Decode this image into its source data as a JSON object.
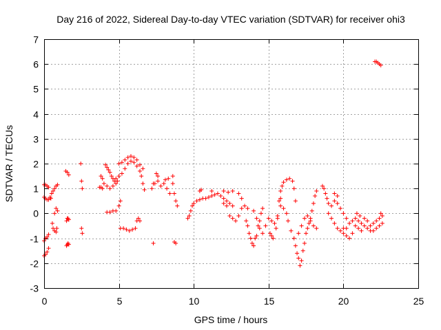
{
  "chart_data": {
    "type": "scatter",
    "title": "Day 216 of 2022, Sidereal Day-to-day VTEC variation (SDTVAR) for receiver ohi3",
    "xlabel": "GPS time / hours",
    "ylabel": "SDTVAR / TECUs",
    "xlim": [
      0,
      25
    ],
    "ylim": [
      -3,
      7
    ],
    "x_ticks": [
      "0",
      "5",
      "10",
      "15",
      "20",
      "25"
    ],
    "y_ticks": [
      "-3",
      "-2",
      "-1",
      "0",
      "1",
      "2",
      "3",
      "4",
      "5",
      "6",
      "7"
    ],
    "grid": true,
    "marker": "plus",
    "color": "#ff0000",
    "series": [
      {
        "name": "SDTVAR",
        "points": [
          [
            0.0,
            -1.7
          ],
          [
            0.1,
            -1.65
          ],
          [
            0.2,
            -1.55
          ],
          [
            0.3,
            -1.4
          ],
          [
            0.0,
            -1.1
          ],
          [
            0.1,
            -1.0
          ],
          [
            0.2,
            -0.95
          ],
          [
            0.3,
            -0.85
          ],
          [
            0.0,
            0.65
          ],
          [
            0.1,
            0.6
          ],
          [
            0.2,
            0.55
          ],
          [
            0.3,
            0.55
          ],
          [
            0.4,
            0.65
          ],
          [
            0.0,
            1.15
          ],
          [
            0.1,
            1.15
          ],
          [
            0.2,
            1.1
          ],
          [
            0.3,
            1.05
          ],
          [
            0.45,
            0.6
          ],
          [
            0.5,
            0.8
          ],
          [
            0.6,
            0.9
          ],
          [
            0.7,
            1.0
          ],
          [
            0.8,
            1.1
          ],
          [
            0.9,
            1.15
          ],
          [
            0.55,
            -0.4
          ],
          [
            0.6,
            -0.6
          ],
          [
            0.7,
            -0.7
          ],
          [
            0.8,
            -0.75
          ],
          [
            0.85,
            -0.6
          ],
          [
            0.7,
            0.0
          ],
          [
            0.8,
            0.2
          ],
          [
            0.9,
            0.1
          ],
          [
            1.5,
            -1.3
          ],
          [
            1.55,
            -1.25
          ],
          [
            1.6,
            -1.2
          ],
          [
            1.65,
            -1.25
          ],
          [
            1.5,
            -0.3
          ],
          [
            1.55,
            -0.2
          ],
          [
            1.6,
            -0.2
          ],
          [
            1.65,
            -0.25
          ],
          [
            1.45,
            1.7
          ],
          [
            1.55,
            1.65
          ],
          [
            1.65,
            1.55
          ],
          [
            2.45,
            2.0
          ],
          [
            2.5,
            1.3
          ],
          [
            2.55,
            1.0
          ],
          [
            2.5,
            -0.6
          ],
          [
            2.55,
            -0.8
          ],
          [
            3.7,
            1.05
          ],
          [
            3.8,
            1.05
          ],
          [
            3.9,
            1.0
          ],
          [
            3.8,
            1.5
          ],
          [
            3.9,
            1.4
          ],
          [
            4.0,
            1.2
          ],
          [
            4.1,
            1.95
          ],
          [
            4.2,
            1.85
          ],
          [
            4.3,
            1.75
          ],
          [
            4.4,
            1.65
          ],
          [
            4.5,
            1.5
          ],
          [
            4.6,
            1.4
          ],
          [
            4.7,
            1.3
          ],
          [
            4.8,
            1.2
          ],
          [
            4.9,
            1.3
          ],
          [
            4.2,
            1.1
          ],
          [
            4.4,
            1.0
          ],
          [
            4.6,
            1.1
          ],
          [
            4.8,
            1.4
          ],
          [
            5.0,
            1.5
          ],
          [
            5.2,
            1.6
          ],
          [
            5.4,
            1.8
          ],
          [
            5.6,
            2.0
          ],
          [
            5.8,
            2.1
          ],
          [
            6.0,
            2.05
          ],
          [
            6.2,
            1.9
          ],
          [
            6.4,
            1.7
          ],
          [
            6.5,
            1.5
          ],
          [
            6.6,
            1.2
          ],
          [
            6.7,
            0.95
          ],
          [
            5.0,
            2.0
          ],
          [
            5.2,
            2.05
          ],
          [
            5.4,
            2.15
          ],
          [
            5.6,
            2.25
          ],
          [
            5.8,
            2.3
          ],
          [
            6.0,
            2.25
          ],
          [
            6.2,
            2.15
          ],
          [
            6.4,
            1.95
          ],
          [
            6.6,
            1.8
          ],
          [
            4.2,
            0.05
          ],
          [
            4.4,
            0.05
          ],
          [
            4.6,
            0.1
          ],
          [
            4.8,
            0.1
          ],
          [
            5.0,
            0.3
          ],
          [
            5.1,
            0.5
          ],
          [
            5.1,
            -0.6
          ],
          [
            5.3,
            -0.6
          ],
          [
            5.5,
            -0.65
          ],
          [
            5.7,
            -0.7
          ],
          [
            5.9,
            -0.65
          ],
          [
            6.1,
            -0.6
          ],
          [
            6.2,
            -0.3
          ],
          [
            6.3,
            -0.2
          ],
          [
            6.4,
            -0.3
          ],
          [
            7.2,
            1.0
          ],
          [
            7.3,
            1.2
          ],
          [
            7.5,
            1.6
          ],
          [
            7.6,
            1.3
          ],
          [
            7.8,
            1.1
          ],
          [
            8.0,
            1.2
          ],
          [
            8.2,
            1.0
          ],
          [
            8.4,
            0.8
          ],
          [
            8.6,
            1.2
          ],
          [
            8.7,
            0.8
          ],
          [
            8.8,
            0.5
          ],
          [
            8.9,
            0.3
          ],
          [
            7.4,
            1.2
          ],
          [
            7.6,
            1.5
          ],
          [
            8.1,
            1.35
          ],
          [
            8.3,
            1.4
          ],
          [
            8.6,
            1.5
          ],
          [
            7.3,
            -1.2
          ],
          [
            8.7,
            -1.15
          ],
          [
            8.8,
            -1.2
          ],
          [
            9.6,
            -0.2
          ],
          [
            9.7,
            -0.1
          ],
          [
            9.8,
            0.1
          ],
          [
            9.9,
            0.3
          ],
          [
            10.0,
            0.4
          ],
          [
            10.2,
            0.5
          ],
          [
            10.4,
            0.55
          ],
          [
            10.6,
            0.6
          ],
          [
            10.8,
            0.6
          ],
          [
            11.0,
            0.65
          ],
          [
            11.2,
            0.7
          ],
          [
            11.4,
            0.75
          ],
          [
            11.6,
            0.8
          ],
          [
            11.8,
            0.7
          ],
          [
            12.0,
            0.6
          ],
          [
            12.2,
            0.5
          ],
          [
            12.4,
            0.4
          ],
          [
            12.6,
            0.3
          ],
          [
            10.4,
            0.9
          ],
          [
            10.5,
            0.95
          ],
          [
            11.2,
            0.9
          ],
          [
            12.0,
            0.9
          ],
          [
            12.3,
            0.85
          ],
          [
            12.6,
            0.9
          ],
          [
            13.0,
            0.8
          ],
          [
            13.2,
            0.6
          ],
          [
            12.0,
            0.4
          ],
          [
            12.2,
            0.3
          ],
          [
            12.4,
            -0.1
          ],
          [
            12.6,
            -0.2
          ],
          [
            12.8,
            -0.3
          ],
          [
            13.0,
            -0.1
          ],
          [
            13.2,
            0.2
          ],
          [
            13.4,
            0.3
          ],
          [
            13.6,
            0.2
          ],
          [
            13.5,
            -0.3
          ],
          [
            13.6,
            -0.5
          ],
          [
            13.7,
            -0.8
          ],
          [
            13.8,
            -1.0
          ],
          [
            13.9,
            -1.2
          ],
          [
            14.0,
            -1.3
          ],
          [
            14.1,
            -1.0
          ],
          [
            14.2,
            -0.9
          ],
          [
            14.3,
            -0.5
          ],
          [
            14.4,
            -0.3
          ],
          [
            14.5,
            0.0
          ],
          [
            14.6,
            0.2
          ],
          [
            14.0,
            0.1
          ],
          [
            14.2,
            -0.2
          ],
          [
            14.4,
            -0.6
          ],
          [
            14.6,
            -0.8
          ],
          [
            14.8,
            -0.5
          ],
          [
            15.0,
            -0.2
          ],
          [
            15.2,
            -0.3
          ],
          [
            15.4,
            -0.4
          ],
          [
            15.6,
            -0.2
          ],
          [
            15.8,
            0.3
          ],
          [
            15.1,
            -0.8
          ],
          [
            15.2,
            -0.9
          ],
          [
            15.3,
            -1.0
          ],
          [
            15.5,
            -0.6
          ],
          [
            15.6,
            -0.1
          ],
          [
            15.7,
            0.5
          ],
          [
            15.8,
            0.9
          ],
          [
            15.9,
            1.1
          ],
          [
            16.0,
            1.25
          ],
          [
            16.2,
            1.35
          ],
          [
            16.4,
            1.4
          ],
          [
            16.6,
            1.3
          ],
          [
            16.7,
            1.0
          ],
          [
            16.8,
            0.5
          ],
          [
            15.8,
            0.6
          ],
          [
            16.0,
            0.2
          ],
          [
            16.2,
            0.0
          ],
          [
            16.3,
            -0.3
          ],
          [
            16.5,
            -0.7
          ],
          [
            16.7,
            -1.0
          ],
          [
            16.8,
            -1.3
          ],
          [
            16.9,
            -1.6
          ],
          [
            17.0,
            -1.8
          ],
          [
            17.1,
            -2.1
          ],
          [
            17.2,
            -1.9
          ],
          [
            17.3,
            -1.5
          ],
          [
            17.4,
            -1.2
          ],
          [
            17.5,
            -0.8
          ],
          [
            17.6,
            -0.6
          ],
          [
            17.7,
            -0.4
          ],
          [
            17.8,
            -0.2
          ],
          [
            17.9,
            0.1
          ],
          [
            18.0,
            0.4
          ],
          [
            18.1,
            0.7
          ],
          [
            18.2,
            0.9
          ],
          [
            17.0,
            -0.8
          ],
          [
            17.2,
            -0.5
          ],
          [
            17.4,
            -0.2
          ],
          [
            17.6,
            -0.1
          ],
          [
            17.8,
            -0.3
          ],
          [
            18.0,
            -0.5
          ],
          [
            18.2,
            -0.6
          ],
          [
            18.6,
            1.1
          ],
          [
            18.7,
            1.0
          ],
          [
            18.8,
            0.8
          ],
          [
            18.9,
            0.6
          ],
          [
            19.0,
            0.4
          ],
          [
            19.2,
            0.3
          ],
          [
            19.4,
            0.5
          ],
          [
            19.6,
            0.4
          ],
          [
            19.8,
            0.2
          ],
          [
            20.0,
            0.0
          ],
          [
            20.2,
            -0.2
          ],
          [
            19.4,
            0.8
          ],
          [
            19.6,
            0.7
          ],
          [
            19.0,
            0.0
          ],
          [
            19.2,
            -0.2
          ],
          [
            19.4,
            -0.4
          ],
          [
            19.6,
            -0.6
          ],
          [
            19.8,
            -0.7
          ],
          [
            20.0,
            -0.8
          ],
          [
            20.2,
            -0.6
          ],
          [
            20.4,
            -0.4
          ],
          [
            20.6,
            -0.3
          ],
          [
            20.0,
            -0.6
          ],
          [
            20.2,
            -0.9
          ],
          [
            20.4,
            -1.0
          ],
          [
            20.6,
            -0.8
          ],
          [
            20.8,
            -0.5
          ],
          [
            21.0,
            -0.3
          ],
          [
            21.2,
            -0.4
          ],
          [
            21.4,
            -0.5
          ],
          [
            21.6,
            -0.6
          ],
          [
            21.8,
            -0.5
          ],
          [
            22.0,
            -0.4
          ],
          [
            22.2,
            -0.3
          ],
          [
            22.4,
            -0.2
          ],
          [
            22.6,
            -0.1
          ],
          [
            20.8,
            -0.2
          ],
          [
            21.0,
            -0.6
          ],
          [
            21.2,
            -0.7
          ],
          [
            21.4,
            -0.2
          ],
          [
            21.6,
            -0.3
          ],
          [
            21.8,
            -0.7
          ],
          [
            22.0,
            -0.7
          ],
          [
            22.2,
            -0.6
          ],
          [
            22.4,
            -0.5
          ],
          [
            22.6,
            -0.4
          ],
          [
            20.9,
            0.0
          ],
          [
            21.1,
            -0.1
          ],
          [
            22.5,
            0.0
          ],
          [
            22.1,
            6.1
          ],
          [
            22.2,
            6.1
          ],
          [
            22.3,
            6.05
          ],
          [
            22.4,
            6.0
          ],
          [
            22.5,
            5.95
          ]
        ]
      }
    ]
  }
}
